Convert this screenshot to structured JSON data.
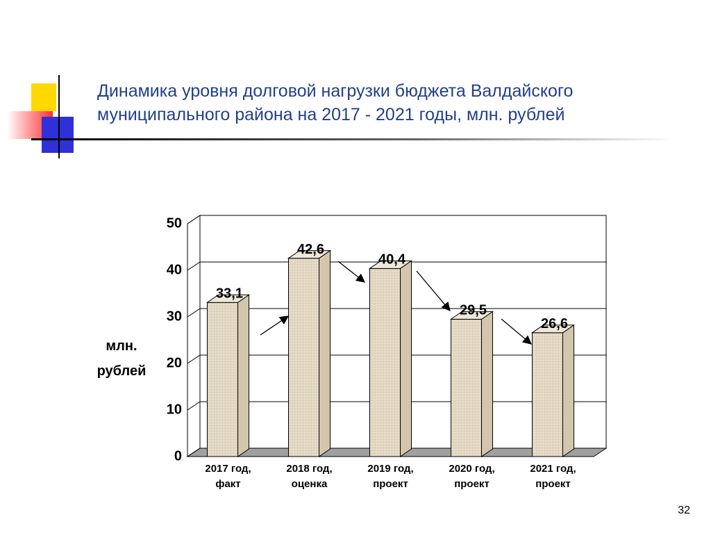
{
  "chart_data": {
    "type": "bar",
    "title": "Динамика уровня долговой нагрузки бюджета Валдайского муниципального района на 2017 - 2021 годы, млн. рублей",
    "y_label": "млн. рублей",
    "categories": [
      "2017 год, факт",
      "2018 год, оценка",
      "2019 год, проект",
      "2020 год, проект",
      "2021 год, проект"
    ],
    "values": [
      33.1,
      42.6,
      40.4,
      29.5,
      26.6
    ],
    "value_labels": [
      "33,1",
      "42,6",
      "40,4",
      "29,5",
      "26,6"
    ],
    "color": "#e2d8c3",
    "ylim": [
      0,
      50
    ],
    "yticks": [
      0,
      10,
      20,
      30,
      40,
      50
    ],
    "grid": true
  },
  "slide_number": "32"
}
